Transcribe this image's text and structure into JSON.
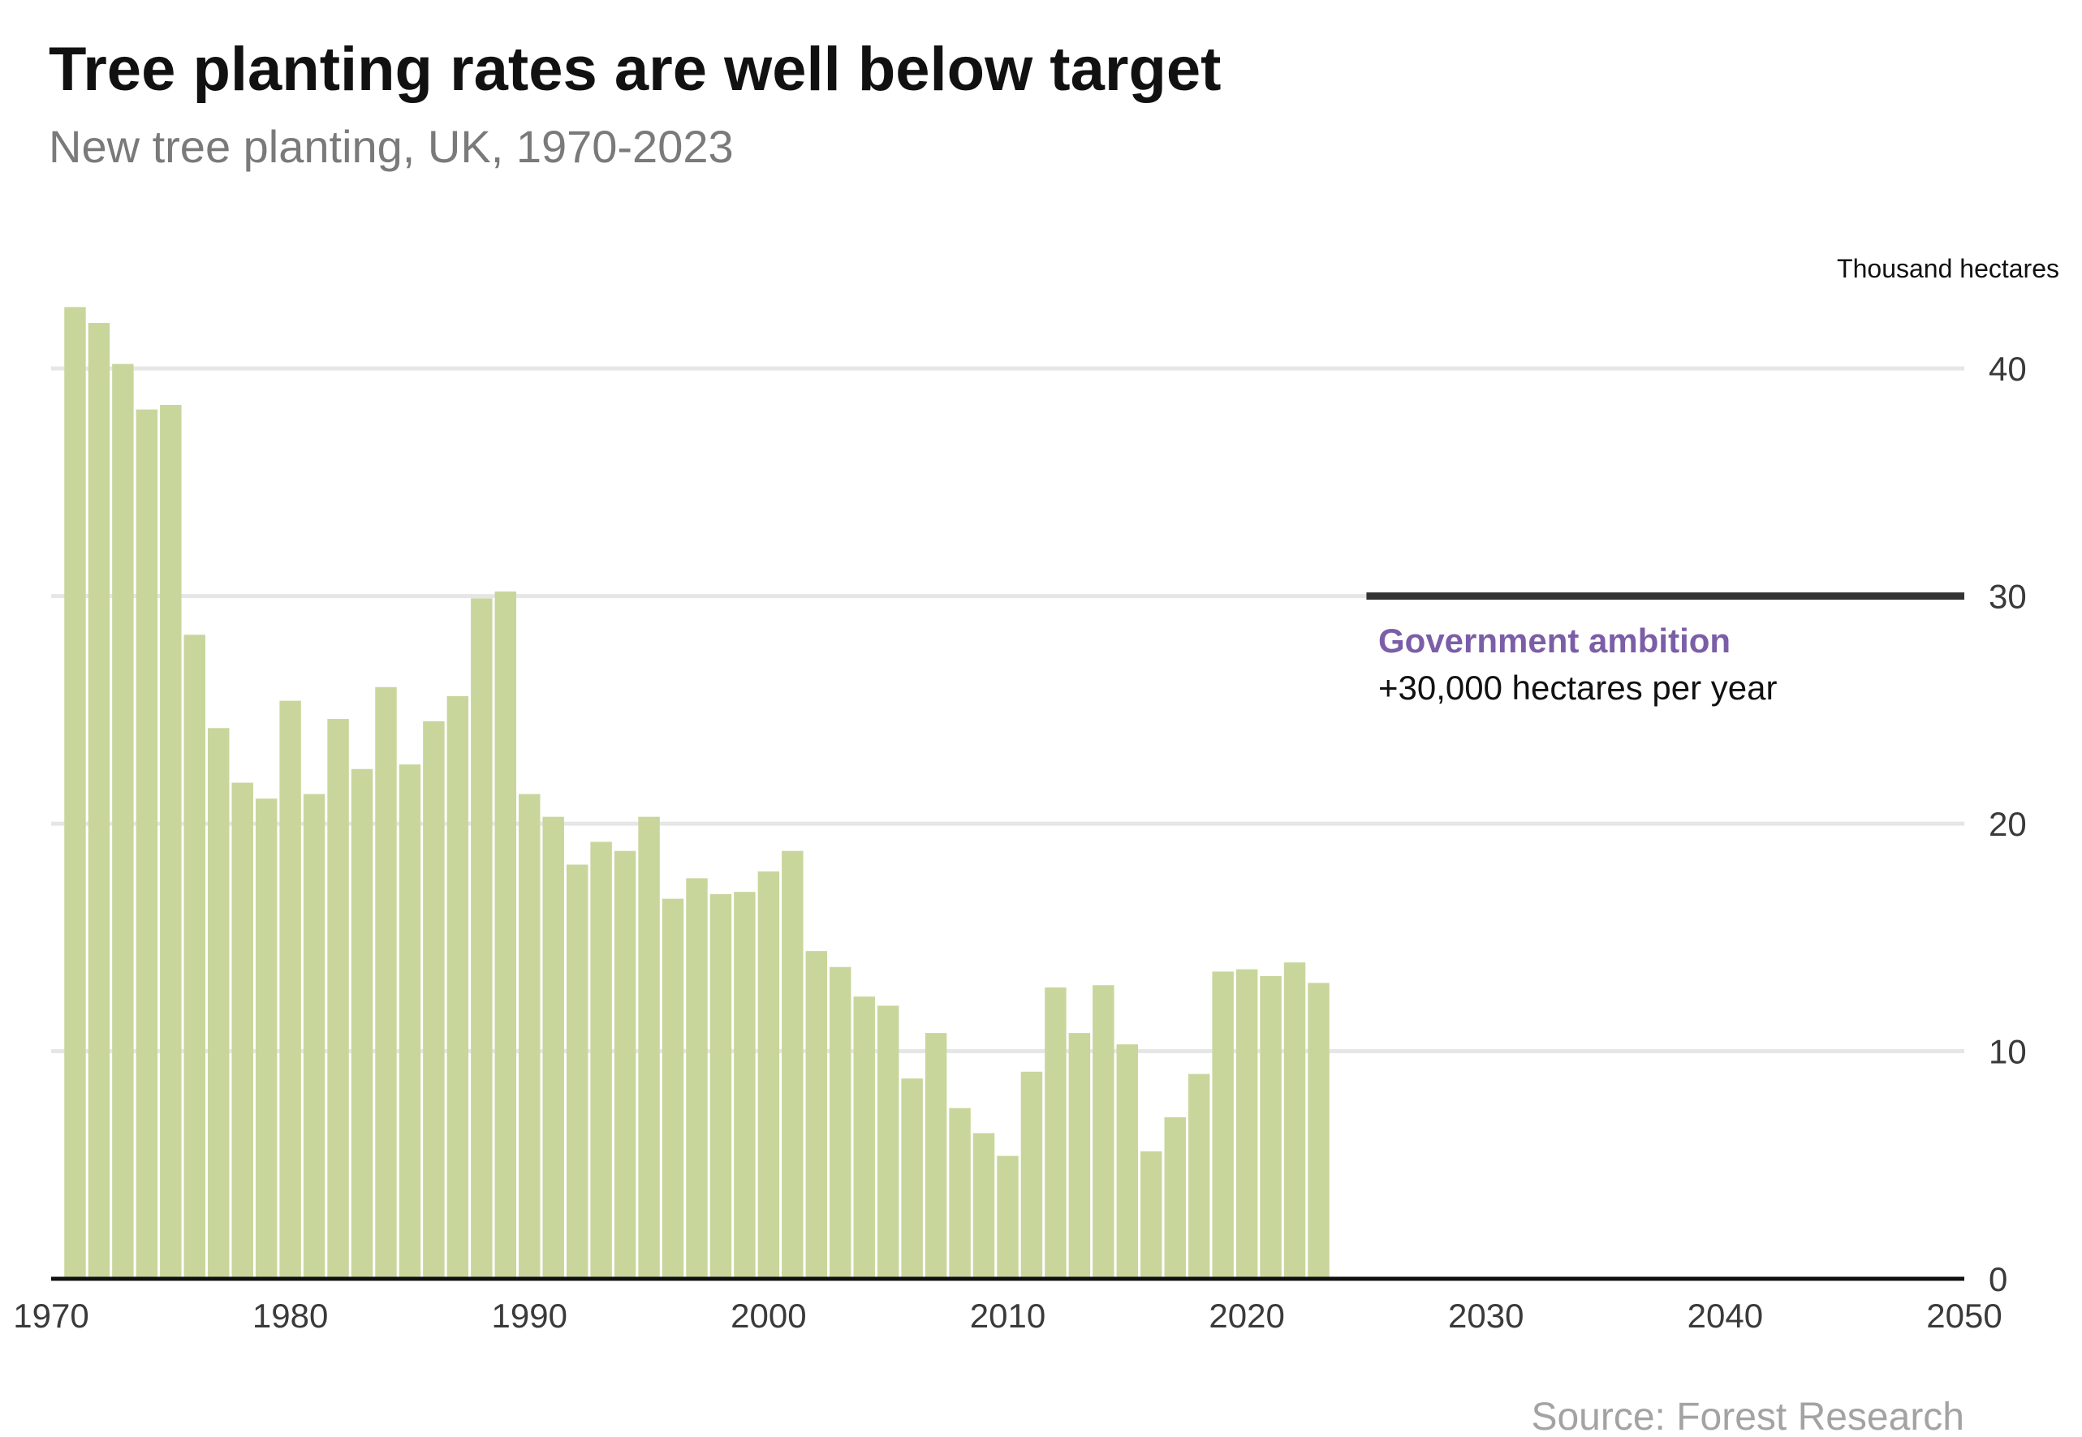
{
  "chart_data": {
    "type": "bar",
    "title": "Tree planting rates are well below target",
    "subtitle": "New tree planting, UK, 1970-2023",
    "ylabel": "Thousand hectares",
    "xlim": [
      1970,
      2050
    ],
    "ylim": [
      0,
      43
    ],
    "x_ticks": [
      1970,
      1980,
      1990,
      2000,
      2010,
      2020,
      2030,
      2040,
      2050
    ],
    "y_ticks": [
      0,
      10,
      20,
      30,
      40
    ],
    "grid": true,
    "y_axis_side": "right",
    "bar_color": "#c8d69c",
    "series": [
      {
        "x": [
          1971,
          1972,
          1973,
          1974,
          1975,
          1976,
          1977,
          1978,
          1979,
          1980,
          1981,
          1982,
          1983,
          1984,
          1985,
          1986,
          1987,
          1988,
          1989,
          1990,
          1991,
          1992,
          1993,
          1994,
          1995,
          1996,
          1997,
          1998,
          1999,
          2000,
          2001,
          2002,
          2003,
          2004,
          2005,
          2006,
          2007,
          2008,
          2009,
          2010,
          2011,
          2012,
          2013,
          2014,
          2015,
          2016,
          2017,
          2018,
          2019,
          2020,
          2021,
          2022,
          2023
        ],
        "values": [
          42.7,
          42.0,
          40.2,
          38.2,
          38.4,
          28.3,
          24.2,
          21.8,
          21.1,
          25.4,
          21.3,
          24.6,
          22.4,
          26.0,
          22.6,
          24.5,
          25.6,
          29.9,
          30.2,
          21.3,
          20.3,
          18.2,
          19.2,
          18.8,
          20.3,
          16.7,
          17.6,
          16.9,
          17.0,
          17.9,
          18.8,
          14.4,
          13.7,
          12.4,
          12.0,
          8.8,
          10.8,
          7.5,
          6.4,
          5.4,
          9.1,
          12.8,
          10.8,
          12.9,
          10.3,
          5.6,
          7.1,
          9.0,
          13.5,
          13.6,
          13.3,
          13.9,
          13.0
        ]
      }
    ],
    "target_line": {
      "value": 30,
      "x_start": 2025,
      "x_end": 2050,
      "color": "#333333",
      "label_title": "Government ambition",
      "label_text": "+30,000 hectares per year",
      "label_color": "#7b5ea7"
    },
    "source": "Source: Forest Research"
  }
}
